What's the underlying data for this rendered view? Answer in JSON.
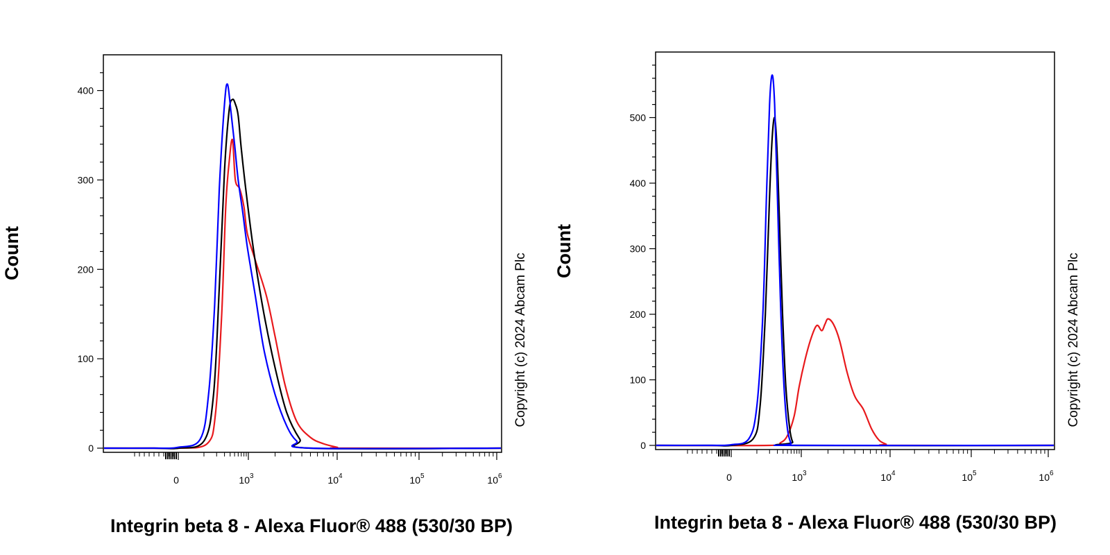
{
  "chart_data": [
    {
      "type": "line",
      "title": "",
      "xlabel": "Integrin beta 8 - Alexa Fluor® 488 (530/30 BP)",
      "ylabel": "Count",
      "copyright": "Copyright (c) 2024 Abcam Plc",
      "x_scale": "biexponential",
      "x_ticks": [
        {
          "value": 0,
          "base": "0",
          "exp": ""
        },
        {
          "value": 1000,
          "base": "10",
          "exp": "3"
        },
        {
          "value": 10000,
          "base": "10",
          "exp": "4"
        },
        {
          "value": 100000,
          "base": "10",
          "exp": "5"
        },
        {
          "value": 1000000,
          "base": "10",
          "exp": "6"
        }
      ],
      "ylim": [
        0,
        440
      ],
      "y_ticks": [
        0,
        100,
        200,
        300,
        400
      ],
      "grid": false,
      "legend": "none",
      "series": [
        {
          "color": "#0000ff",
          "points": [
            [
              -100,
              0
            ],
            [
              0,
              1
            ],
            [
              80,
              10
            ],
            [
              130,
              60
            ],
            [
              180,
              160
            ],
            [
              230,
              290
            ],
            [
              300,
              385
            ],
            [
              350,
              407
            ],
            [
              420,
              375
            ],
            [
              500,
              340
            ],
            [
              600,
              300
            ],
            [
              750,
              265
            ],
            [
              950,
              225
            ],
            [
              1200,
              170
            ],
            [
              1500,
              110
            ],
            [
              2000,
              60
            ],
            [
              2700,
              25
            ],
            [
              3500,
              8
            ],
            [
              5000,
              0
            ]
          ]
        },
        {
          "color": "#000000",
          "points": [
            [
              -100,
              0
            ],
            [
              0,
              0
            ],
            [
              100,
              8
            ],
            [
              170,
              60
            ],
            [
              230,
              180
            ],
            [
              300,
              310
            ],
            [
              380,
              378
            ],
            [
              450,
              390
            ],
            [
              520,
              385
            ],
            [
              600,
              372
            ],
            [
              700,
              335
            ],
            [
              900,
              285
            ],
            [
              1150,
              220
            ],
            [
              1500,
              150
            ],
            [
              2000,
              90
            ],
            [
              2700,
              40
            ],
            [
              3800,
              10
            ],
            [
              5000,
              0
            ]
          ]
        },
        {
          "color": "#e8191c",
          "points": [
            [
              -100,
              0
            ],
            [
              0,
              0
            ],
            [
              120,
              5
            ],
            [
              190,
              40
            ],
            [
              260,
              150
            ],
            [
              320,
              270
            ],
            [
              380,
              320
            ],
            [
              450,
              345
            ],
            [
              520,
              300
            ],
            [
              650,
              290
            ],
            [
              800,
              270
            ],
            [
              950,
              240
            ],
            [
              1200,
              210
            ],
            [
              1600,
              170
            ],
            [
              2000,
              125
            ],
            [
              2600,
              70
            ],
            [
              3500,
              30
            ],
            [
              5000,
              12
            ],
            [
              7000,
              5
            ],
            [
              10000,
              1
            ],
            [
              12000,
              0
            ]
          ]
        }
      ]
    },
    {
      "type": "line",
      "title": "",
      "xlabel": "Integrin beta 8 - Alexa Fluor® 488 (530/30 BP)",
      "ylabel": "Count",
      "copyright": "Copyright (c) 2024 Abcam Plc",
      "x_scale": "biexponential",
      "x_ticks": [
        {
          "value": 0,
          "base": "0",
          "exp": ""
        },
        {
          "value": 1000,
          "base": "10",
          "exp": "3"
        },
        {
          "value": 10000,
          "base": "10",
          "exp": "4"
        },
        {
          "value": 100000,
          "base": "10",
          "exp": "5"
        },
        {
          "value": 1000000,
          "base": "10",
          "exp": "6"
        }
      ],
      "ylim": [
        0,
        600
      ],
      "y_ticks": [
        0,
        100,
        200,
        300,
        400,
        500
      ],
      "grid": false,
      "legend": "none",
      "series": [
        {
          "color": "#0000ff",
          "points": [
            [
              -80,
              0
            ],
            [
              0,
              1
            ],
            [
              60,
              10
            ],
            [
              100,
              60
            ],
            [
              140,
              200
            ],
            [
              170,
              380
            ],
            [
              200,
              520
            ],
            [
              230,
              565
            ],
            [
              260,
              520
            ],
            [
              300,
              380
            ],
            [
              350,
              220
            ],
            [
              420,
              90
            ],
            [
              500,
              25
            ],
            [
              600,
              3
            ],
            [
              700,
              0
            ]
          ]
        },
        {
          "color": "#000000",
          "points": [
            [
              -80,
              0
            ],
            [
              0,
              0
            ],
            [
              80,
              10
            ],
            [
              120,
              60
            ],
            [
              160,
              200
            ],
            [
              200,
              380
            ],
            [
              230,
              470
            ],
            [
              260,
              500
            ],
            [
              290,
              460
            ],
            [
              330,
              350
            ],
            [
              390,
              200
            ],
            [
              460,
              90
            ],
            [
              560,
              25
            ],
            [
              650,
              5
            ],
            [
              750,
              0
            ]
          ]
        },
        {
          "color": "#e8191c",
          "points": [
            [
              200,
              0
            ],
            [
              350,
              4
            ],
            [
              500,
              15
            ],
            [
              700,
              45
            ],
            [
              900,
              90
            ],
            [
              1100,
              130
            ],
            [
              1300,
              165
            ],
            [
              1500,
              183
            ],
            [
              1700,
              175
            ],
            [
              1850,
              185
            ],
            [
              2000,
              193
            ],
            [
              2300,
              185
            ],
            [
              2700,
              160
            ],
            [
              3300,
              110
            ],
            [
              4000,
              75
            ],
            [
              5000,
              55
            ],
            [
              6200,
              25
            ],
            [
              7500,
              8
            ],
            [
              9000,
              2
            ],
            [
              11000,
              0
            ]
          ]
        }
      ]
    }
  ]
}
